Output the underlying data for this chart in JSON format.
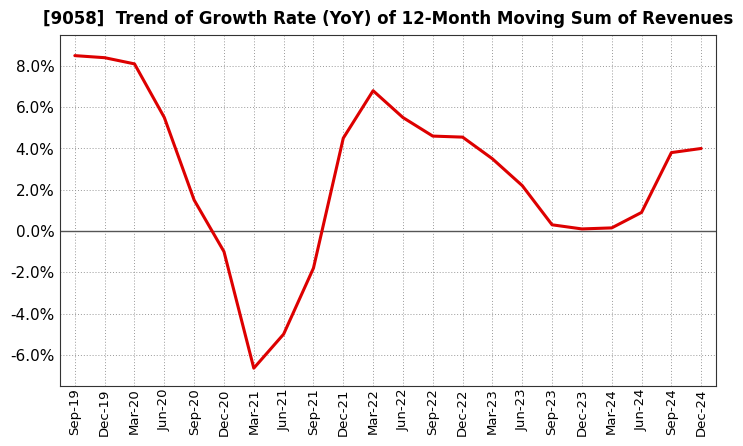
{
  "title": "[9058]  Trend of Growth Rate (YoY) of 12-Month Moving Sum of Revenues",
  "x_labels": [
    "Sep-19",
    "Dec-19",
    "Mar-20",
    "Jun-20",
    "Sep-20",
    "Dec-20",
    "Mar-21",
    "Jun-21",
    "Sep-21",
    "Dec-21",
    "Mar-22",
    "Jun-22",
    "Sep-22",
    "Dec-22",
    "Mar-23",
    "Jun-23",
    "Sep-23",
    "Dec-23",
    "Mar-24",
    "Jun-24",
    "Sep-24",
    "Dec-24"
  ],
  "y_values": [
    8.5,
    8.4,
    8.1,
    5.5,
    1.5,
    -1.0,
    -6.65,
    -5.0,
    -1.8,
    4.5,
    6.8,
    5.5,
    4.6,
    4.55,
    3.5,
    2.2,
    0.3,
    0.1,
    0.15,
    0.9,
    3.8,
    4.0
  ],
  "line_color": "#dd0000",
  "line_width": 2.2,
  "background_color": "#ffffff",
  "grid_color": "#999999",
  "ylim": [
    -7.5,
    9.5
  ],
  "yticks": [
    -6.0,
    -4.0,
    -2.0,
    0.0,
    2.0,
    4.0,
    6.0,
    8.0
  ],
  "title_fontsize": 12,
  "tick_fontsize": 9.5,
  "ylabel_fontsize": 11
}
